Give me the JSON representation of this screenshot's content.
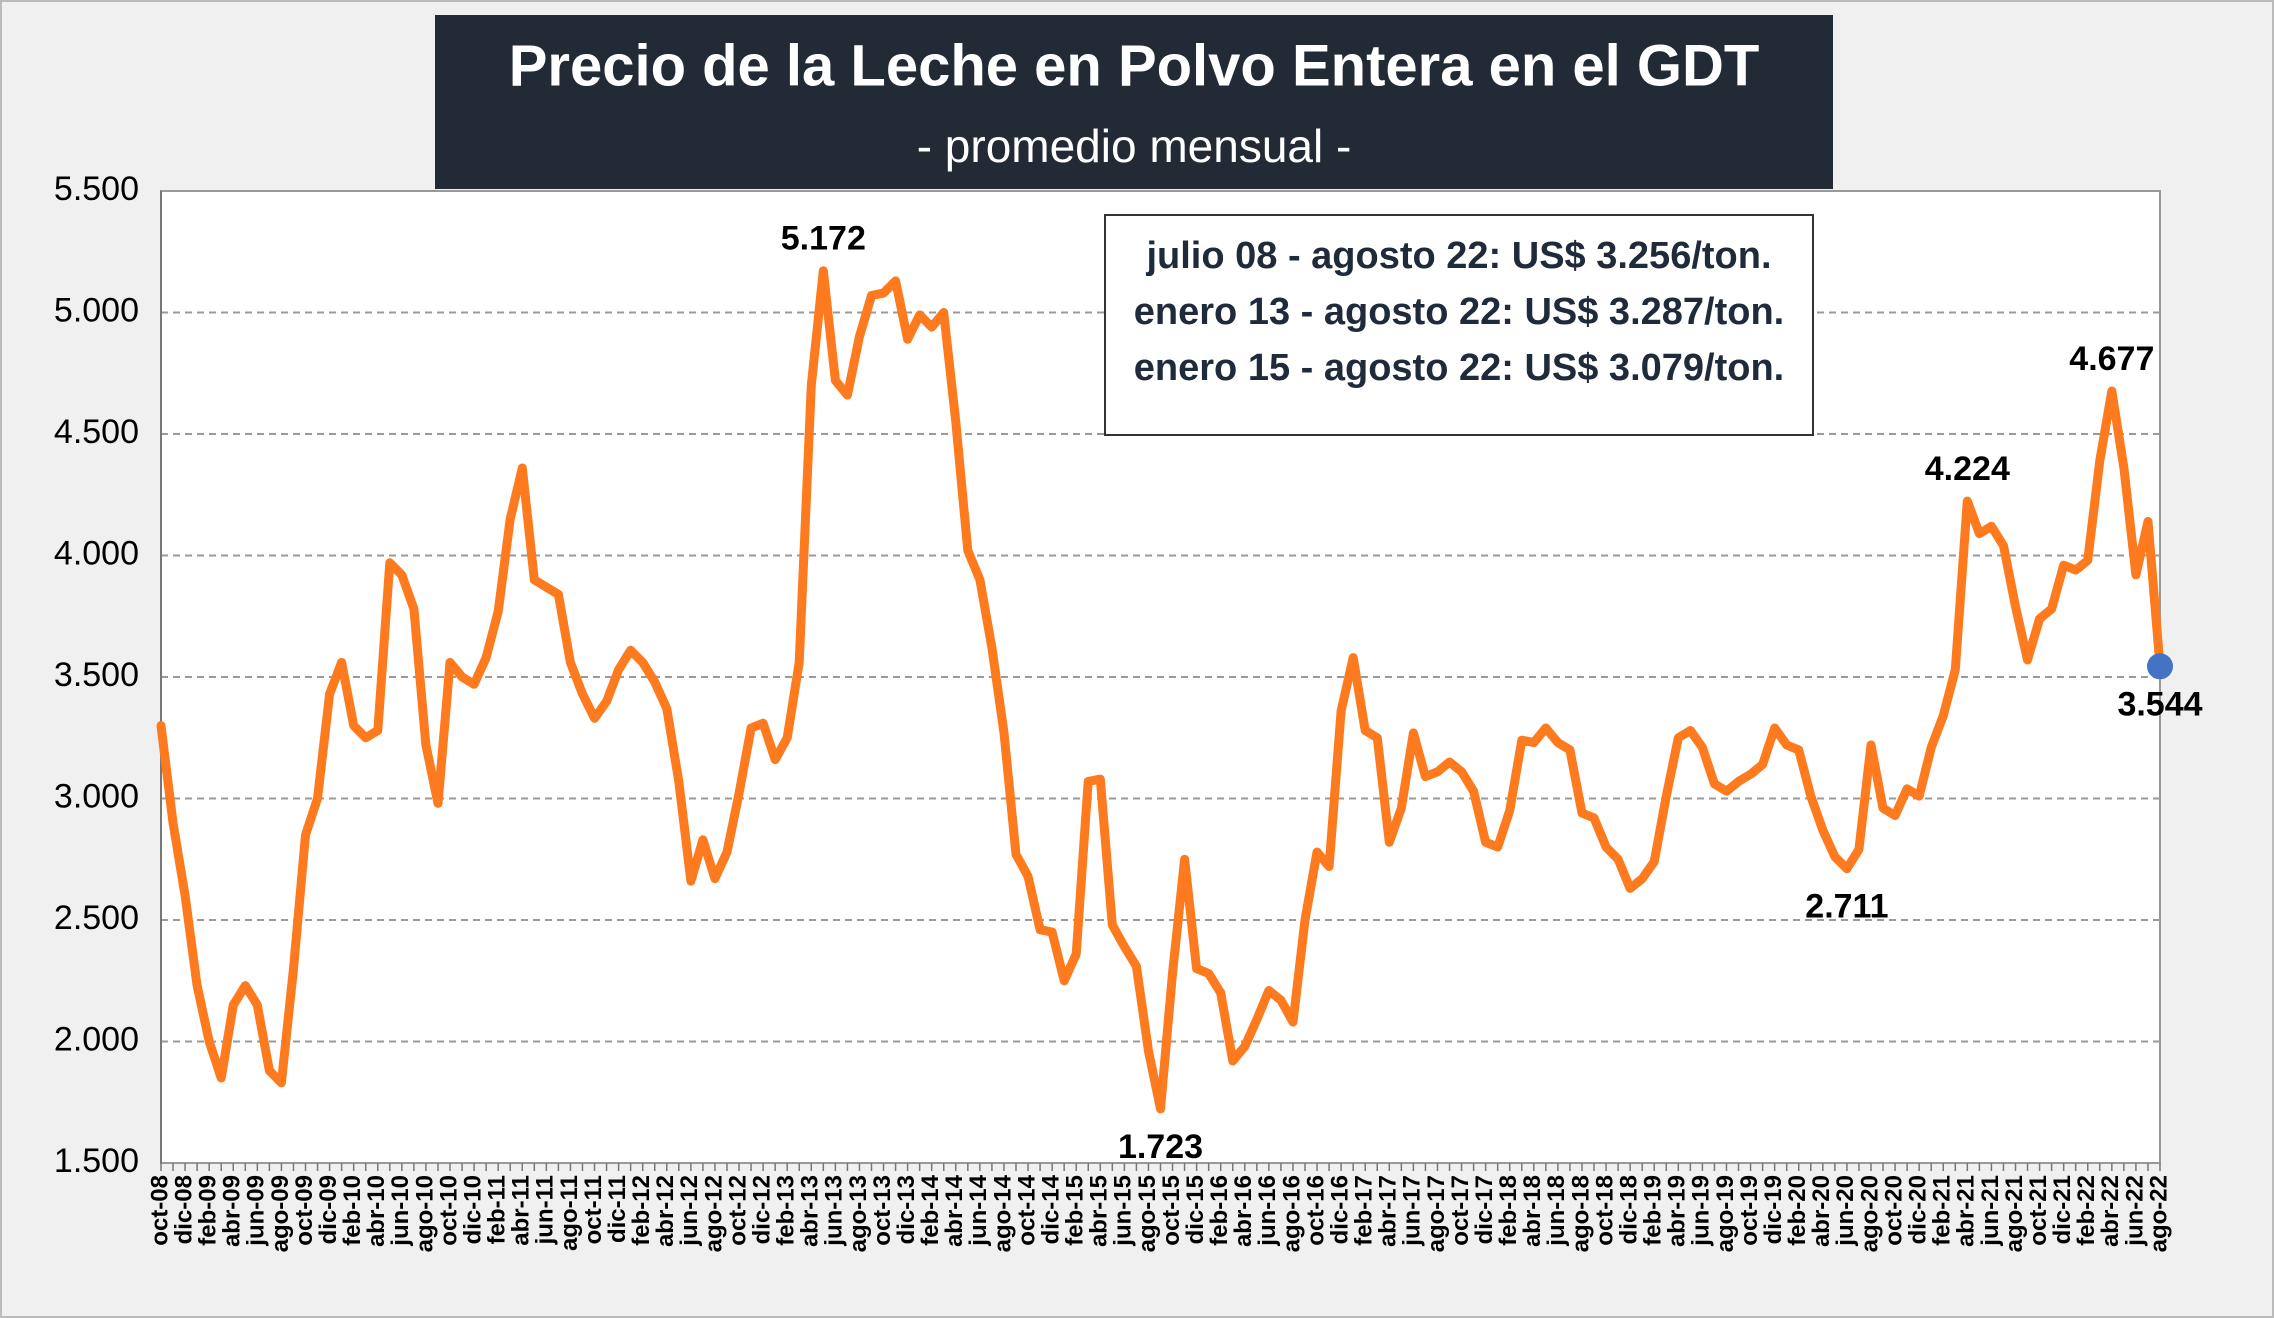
{
  "chart_data": {
    "type": "line",
    "title": "Precio de la Leche en Polvo Entera en el GDT",
    "subtitle": "- promedio mensual -",
    "annotations": [
      "julio 08 - agosto 22: US$ 3.256/ton.",
      "enero 13 - agosto 22: US$ 3.287/ton.",
      "enero 15 - agosto 22: US$ 3.079/ton."
    ],
    "color": "#fd7a1e",
    "highlight_color": "#4472c4",
    "grid": true,
    "ylim": [
      1500,
      5500
    ],
    "yticks": [
      {
        "value": 1500,
        "label": "1.500"
      },
      {
        "value": 2000,
        "label": "2.000"
      },
      {
        "value": 2500,
        "label": "2.500"
      },
      {
        "value": 3000,
        "label": "3.000"
      },
      {
        "value": 3500,
        "label": "3.500"
      },
      {
        "value": 4000,
        "label": "4.000"
      },
      {
        "value": 4500,
        "label": "4.500"
      },
      {
        "value": 5000,
        "label": "5.000"
      },
      {
        "value": 5500,
        "label": "5.500"
      }
    ],
    "categories": [
      "oct-08",
      null,
      "dic-08",
      null,
      "feb-09",
      null,
      "abr-09",
      null,
      "jun-09",
      null,
      "ago-09",
      null,
      "oct-09",
      null,
      "dic-09",
      null,
      "feb-10",
      null,
      "abr-10",
      null,
      "jun-10",
      null,
      "ago-10",
      null,
      "oct-10",
      null,
      "dic-10",
      null,
      "feb-11",
      null,
      "abr-11",
      null,
      "jun-11",
      null,
      "ago-11",
      null,
      "oct-11",
      null,
      "dic-11",
      null,
      "feb-12",
      null,
      "abr-12",
      null,
      "jun-12",
      null,
      "ago-12",
      null,
      "oct-12",
      null,
      "dic-12",
      null,
      "feb-13",
      null,
      "abr-13",
      null,
      "jun-13",
      null,
      "ago-13",
      null,
      "oct-13",
      null,
      "dic-13",
      null,
      "feb-14",
      null,
      "abr-14",
      null,
      "jun-14",
      null,
      "ago-14",
      null,
      "oct-14",
      null,
      "dic-14",
      null,
      "feb-15",
      null,
      "abr-15",
      null,
      "jun-15",
      null,
      "ago-15",
      null,
      "oct-15",
      null,
      "dic-15",
      null,
      "feb-16",
      null,
      "abr-16",
      null,
      "jun-16",
      null,
      "ago-16",
      null,
      "oct-16",
      null,
      "dic-16",
      null,
      "feb-17",
      null,
      "abr-17",
      null,
      "jun-17",
      null,
      "ago-17",
      null,
      "oct-17",
      null,
      "dic-17",
      null,
      "feb-18",
      null,
      "abr-18",
      null,
      "jun-18",
      null,
      "ago-18",
      null,
      "oct-18",
      null,
      "dic-18",
      null,
      "feb-19",
      null,
      "abr-19",
      null,
      "jun-19",
      null,
      "ago-19",
      null,
      "oct-19",
      null,
      "dic-19",
      null,
      "feb-20",
      null,
      "abr-20",
      null,
      "jun-20",
      null,
      "ago-20",
      null,
      "oct-20",
      null,
      "dic-20",
      null,
      "feb-21",
      null,
      "abr-21",
      null,
      "jun-21",
      null,
      "ago-21",
      null,
      "oct-21",
      null,
      "dic-21",
      null,
      "feb-22",
      null,
      "abr-22",
      null,
      "jun-22",
      null,
      "ago-22"
    ],
    "values": [
      3300,
      2900,
      2600,
      2230,
      2000,
      1850,
      2150,
      2230,
      2150,
      1880,
      1830,
      2300,
      2850,
      3000,
      3430,
      3560,
      3300,
      3250,
      3280,
      3970,
      3920,
      3780,
      3220,
      2980,
      3560,
      3500,
      3470,
      3580,
      3770,
      4150,
      4360,
      3900,
      3870,
      3840,
      3560,
      3430,
      3330,
      3400,
      3530,
      3610,
      3560,
      3480,
      3370,
      3070,
      2660,
      2830,
      2670,
      2780,
      3020,
      3290,
      3310,
      3160,
      3250,
      3560,
      4700,
      5172,
      4720,
      4660,
      4900,
      5070,
      5080,
      5130,
      4890,
      4990,
      4940,
      5000,
      4550,
      4020,
      3900,
      3620,
      3270,
      2770,
      2680,
      2460,
      2450,
      2250,
      2360,
      3070,
      3080,
      2480,
      2390,
      2310,
      1960,
      1723,
      2280,
      2750,
      2300,
      2280,
      2200,
      1920,
      1980,
      2090,
      2210,
      2170,
      2080,
      2500,
      2780,
      2720,
      3360,
      3580,
      3280,
      3250,
      2820,
      2960,
      3270,
      3090,
      3110,
      3150,
      3110,
      3030,
      2820,
      2800,
      2950,
      3240,
      3230,
      3290,
      3230,
      3200,
      2940,
      2920,
      2800,
      2750,
      2630,
      2670,
      2740,
      3010,
      3250,
      3280,
      3210,
      3060,
      3030,
      3070,
      3100,
      3140,
      3290,
      3220,
      3200,
      3010,
      2870,
      2760,
      2711,
      2790,
      3220,
      2960,
      2930,
      3040,
      3010,
      3210,
      3340,
      3530,
      4224,
      4090,
      4120,
      4040,
      3790,
      3570,
      3740,
      3780,
      3960,
      3940,
      3980,
      4390,
      4677,
      4360,
      3920,
      4140,
      3544
    ],
    "value_labels": [
      null,
      null,
      null,
      null,
      null,
      null,
      null,
      null,
      null,
      null,
      null,
      null,
      null,
      null,
      null,
      null,
      null,
      null,
      null,
      null,
      null,
      null,
      null,
      null,
      null,
      null,
      null,
      null,
      null,
      null,
      null,
      null,
      null,
      null,
      null,
      null,
      null,
      null,
      null,
      null,
      null,
      null,
      null,
      null,
      null,
      null,
      null,
      null,
      null,
      null,
      null,
      null,
      null,
      null,
      null,
      "5.172",
      null,
      null,
      null,
      null,
      null,
      null,
      null,
      null,
      null,
      null,
      null,
      null,
      null,
      null,
      null,
      null,
      null,
      null,
      null,
      null,
      null,
      null,
      null,
      null,
      null,
      null,
      null,
      "1.723",
      null,
      null,
      null,
      null,
      null,
      null,
      null,
      null,
      null,
      null,
      null,
      null,
      null,
      null,
      null,
      null,
      null,
      null,
      null,
      null,
      null,
      null,
      null,
      null,
      null,
      null,
      null,
      null,
      null,
      null,
      null,
      null,
      null,
      null,
      null,
      null,
      null,
      null,
      null,
      null,
      null,
      null,
      null,
      null,
      null,
      null,
      null,
      null,
      null,
      null,
      null,
      null,
      null,
      null,
      null,
      null,
      "2.711",
      null,
      null,
      null,
      null,
      null,
      null,
      null,
      null,
      null,
      "4.224",
      null,
      null,
      null,
      null,
      null,
      null,
      null,
      null,
      null,
      null,
      null,
      "4.677",
      null,
      null,
      null,
      "3.544"
    ]
  }
}
